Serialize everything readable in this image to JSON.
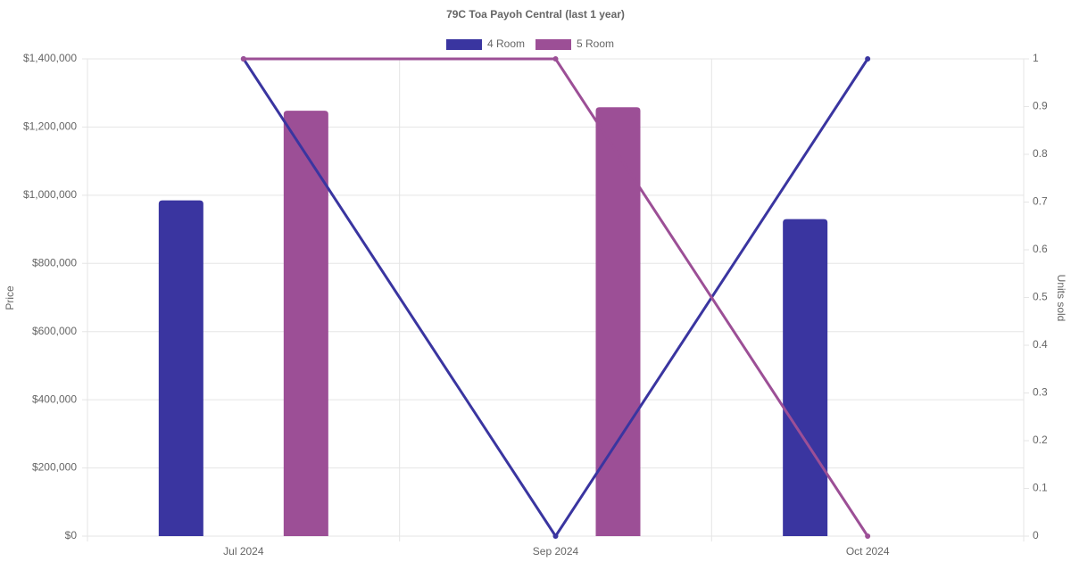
{
  "chart_data": {
    "type": "bar_line",
    "title": "79C Toa Payoh Central (last 1 year)",
    "y_label": "Price",
    "y2_label": "Units sold",
    "categories": [
      "Jul 2024",
      "Sep 2024",
      "Oct 2024"
    ],
    "series": [
      {
        "name": "4 Room",
        "color": "#3a35a0",
        "values": [
          985000,
          null,
          930000
        ],
        "units_sold": [
          1,
          0,
          1
        ]
      },
      {
        "name": "5 Room",
        "color": "#9c4f96",
        "values": [
          1248000,
          1258000,
          null
        ],
        "units_sold": [
          1,
          1,
          0
        ]
      }
    ],
    "ylim": [
      0,
      1400000
    ],
    "yticks": [
      {
        "value": 0,
        "label": "$0"
      },
      {
        "value": 200000,
        "label": "$200,000"
      },
      {
        "value": 400000,
        "label": "$400,000"
      },
      {
        "value": 600000,
        "label": "$600,000"
      },
      {
        "value": 800000,
        "label": "$800,000"
      },
      {
        "value": 1000000,
        "label": "$1,000,000"
      },
      {
        "value": 1200000,
        "label": "$1,200,000"
      },
      {
        "value": 1400000,
        "label": "$1,400,000"
      }
    ],
    "y2lim": [
      0,
      1
    ],
    "y2ticks": [
      0,
      0.1,
      0.2,
      0.3,
      0.4,
      0.5,
      0.6,
      0.7,
      0.8,
      0.9,
      1
    ],
    "grid": true,
    "legend": "top"
  }
}
